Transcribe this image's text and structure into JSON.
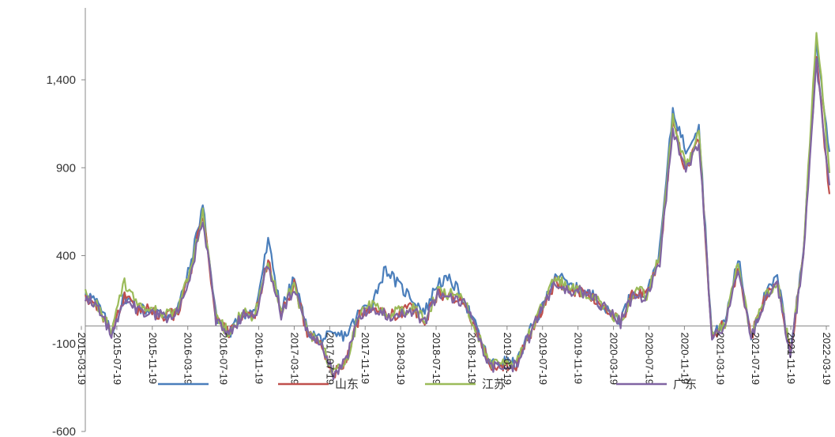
{
  "chart_data": {
    "type": "line",
    "title": "",
    "xlabel": "",
    "ylabel": "",
    "ylim": [
      -600,
      1800
    ],
    "y_ticks": [
      -600,
      -100,
      400,
      900,
      1400
    ],
    "y_tick_labels": [
      "-600",
      "-100",
      "400",
      "900",
      "1,400"
    ],
    "x_tick_labels": [
      "2015-03-19",
      "2015-07-19",
      "2015-11-19",
      "2016-03-19",
      "2016-07-19",
      "2016-11-19",
      "2017-03-19",
      "2017-07-19",
      "2017-11-19",
      "2018-03-19",
      "2018-07-19",
      "2018-11-19",
      "2019-03-19",
      "2019-07-19",
      "2019-11-19",
      "2020-03-19",
      "2020-07-19",
      "2020-11-19",
      "2021-03-19",
      "2021-07-19",
      "2021-11-19",
      "2022-03-19"
    ],
    "grid": false,
    "legend_position": "bottom-center",
    "series": [
      {
        "name": "",
        "color": "#4a7ebb",
        "values": [
          200,
          120,
          -40,
          170,
          100,
          90,
          60,
          80,
          330,
          690,
          60,
          -50,
          70,
          80,
          480,
          90,
          270,
          -30,
          -70,
          -60,
          -50,
          80,
          140,
          330,
          230,
          160,
          80,
          250,
          260,
          150,
          -20,
          -220,
          -200,
          -220,
          -40,
          100,
          300,
          230,
          200,
          170,
          80,
          40,
          210,
          170,
          430,
          1230,
          1000,
          1150,
          -60,
          20,
          390,
          -50,
          160,
          280,
          -150,
          420,
          1620,
          990
        ]
      },
      {
        "name": "山东",
        "color": "#c0504d",
        "values": [
          170,
          100,
          -30,
          160,
          90,
          90,
          60,
          70,
          280,
          640,
          50,
          -50,
          60,
          60,
          380,
          80,
          230,
          -30,
          -80,
          -280,
          -200,
          60,
          120,
          60,
          70,
          100,
          30,
          180,
          170,
          140,
          -40,
          -230,
          -220,
          -220,
          -60,
          100,
          250,
          210,
          190,
          160,
          80,
          20,
          190,
          170,
          380,
          1150,
          880,
          1070,
          -60,
          20,
          330,
          -60,
          140,
          250,
          -150,
          380,
          1540,
          750
        ]
      },
      {
        "name": "江苏",
        "color": "#9bbb59",
        "values": [
          180,
          110,
          -30,
          250,
          110,
          100,
          70,
          80,
          290,
          650,
          40,
          -40,
          70,
          60,
          380,
          80,
          240,
          -40,
          -80,
          -270,
          -190,
          70,
          130,
          70,
          80,
          110,
          40,
          190,
          180,
          150,
          -30,
          -220,
          -210,
          -220,
          -50,
          110,
          270,
          220,
          200,
          170,
          90,
          30,
          200,
          180,
          400,
          1180,
          900,
          1100,
          -60,
          20,
          350,
          -50,
          150,
          260,
          -150,
          400,
          1700,
          870
        ]
      },
      {
        "name": "广东",
        "color": "#8064a2",
        "values": [
          160,
          100,
          -40,
          150,
          90,
          80,
          50,
          70,
          270,
          620,
          40,
          -50,
          60,
          50,
          360,
          70,
          220,
          -40,
          -90,
          -270,
          -190,
          60,
          110,
          60,
          70,
          90,
          30,
          180,
          170,
          130,
          -40,
          -240,
          -230,
          -230,
          -60,
          100,
          250,
          210,
          190,
          160,
          80,
          20,
          190,
          160,
          370,
          1120,
          870,
          1050,
          -60,
          10,
          320,
          -60,
          130,
          240,
          -160,
          370,
          1500,
          800
        ]
      }
    ]
  }
}
